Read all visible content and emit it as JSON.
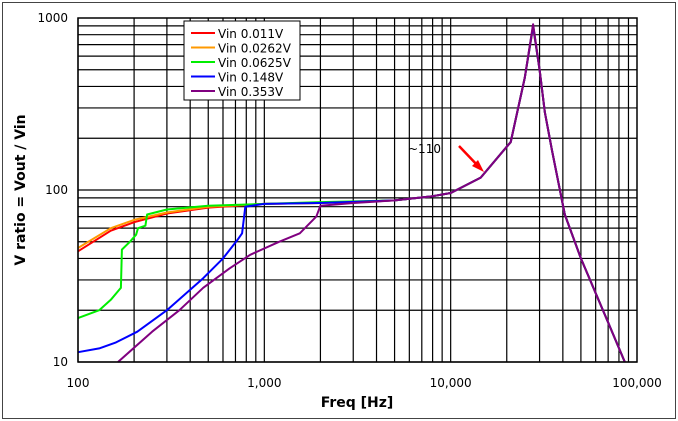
{
  "chart_data": {
    "type": "line",
    "title": "",
    "xlabel": "Freq [Hz]",
    "ylabel": "V ratio = Vout / Vin",
    "xscale": "log",
    "yscale": "log",
    "xlim": [
      100,
      100000
    ],
    "ylim": [
      10,
      1000
    ],
    "xticks": [
      {
        "v": 100,
        "label": "100"
      },
      {
        "v": 1000,
        "label": "1,000"
      },
      {
        "v": 10000,
        "label": "10,000"
      },
      {
        "v": 100000,
        "label": "100,000"
      }
    ],
    "yticks": [
      {
        "v": 10,
        "label": "10"
      },
      {
        "v": 100,
        "label": "100"
      },
      {
        "v": 1000,
        "label": "1000"
      }
    ],
    "grid": true,
    "legend_position": "top-left",
    "annotation": {
      "text": "~110",
      "arrow_color": "#ff0000"
    },
    "series": [
      {
        "name": "Vin 0.011V",
        "color": "#ff0000",
        "x": [
          100,
          150,
          200,
          300,
          500,
          1000,
          2000,
          5000,
          8000,
          10000,
          14500,
          21000,
          25000,
          27700,
          30000,
          32000,
          35000,
          41000,
          50000,
          70000,
          86000
        ],
        "y": [
          44,
          58,
          65,
          73,
          79,
          83,
          84,
          87,
          92,
          96,
          118,
          190,
          450,
          880,
          500,
          284,
          170,
          72,
          40,
          17,
          10
        ]
      },
      {
        "name": "Vin 0.0262V",
        "color": "#ff9900",
        "x": [
          100,
          150,
          200,
          300,
          500,
          1000,
          2000,
          5000,
          8000,
          10000,
          14500,
          21000,
          25000,
          27700,
          30000,
          32000,
          35000,
          41000,
          50000,
          70000,
          86000
        ],
        "y": [
          46,
          60,
          67,
          74,
          80,
          83,
          84,
          87,
          92,
          96,
          118,
          190,
          450,
          900,
          500,
          284,
          170,
          72,
          40,
          17,
          10
        ]
      },
      {
        "name": "Vin 0.0625V",
        "color": "#00ee00",
        "x": [
          100,
          130,
          150,
          165,
          170,
          172,
          190,
          205,
          210,
          230,
          235,
          300,
          500,
          1000,
          2000,
          5000,
          8000,
          10000,
          14500,
          21000,
          25000,
          27700,
          30000,
          32000,
          35000,
          41000,
          50000,
          70000,
          86000
        ],
        "y": [
          18,
          20,
          23,
          26,
          27,
          45,
          50,
          55,
          60,
          62,
          72,
          77,
          81,
          83,
          85,
          87,
          92,
          96,
          118,
          190,
          450,
          900,
          500,
          284,
          170,
          72,
          40,
          17,
          10
        ]
      },
      {
        "name": "Vin 0.148V",
        "color": "#0000ff",
        "x": [
          100,
          130,
          160,
          208,
          300,
          470,
          600,
          715,
          760,
          790,
          1000,
          2000,
          5000,
          8000,
          10000,
          14500,
          21000,
          25000,
          27700,
          30000,
          32000,
          35000,
          41000,
          50000,
          70000,
          86000
        ],
        "y": [
          11.4,
          12,
          13,
          15,
          20,
          30.7,
          40,
          51,
          56,
          80,
          83,
          84,
          87,
          92,
          96,
          118,
          190,
          450,
          900,
          500,
          284,
          170,
          72,
          40,
          17,
          10
        ]
      },
      {
        "name": "Vin 0.353V",
        "color": "#800080",
        "x": [
          164,
          250,
          350,
          470,
          650,
          840,
          1200,
          1550,
          1900,
          2000,
          3000,
          5000,
          8000,
          10000,
          14500,
          21000,
          25000,
          27700,
          30000,
          32000,
          35000,
          41000,
          50000,
          70000,
          86000
        ],
        "y": [
          10,
          15,
          20,
          27,
          35,
          42,
          50,
          56,
          70,
          81,
          84,
          87,
          92,
          96,
          118,
          190,
          450,
          920,
          500,
          284,
          170,
          72,
          40,
          17,
          10
        ]
      }
    ]
  }
}
